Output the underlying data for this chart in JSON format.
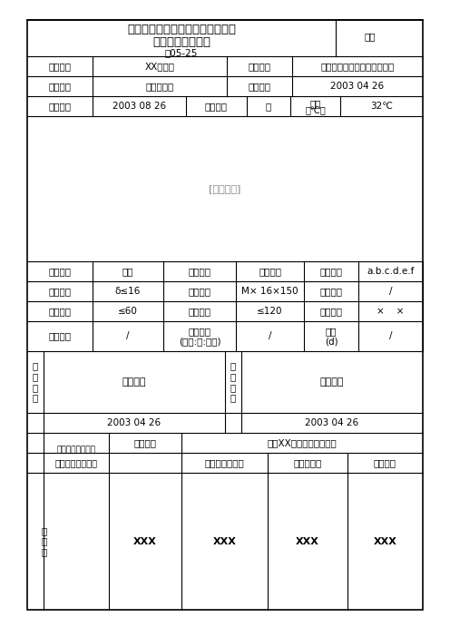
{
  "title_line1": "电梯导轨、层门的支架、螺栓埋设",
  "title_line2": "隐蔽工程检查记录",
  "title_line3": "表05-25",
  "biaohao_label": "编号",
  "row1": [
    "工程名称",
    "XX干休所",
    "隐检项目",
    "导轨、层门的支架、螺栓埋设"
  ],
  "row2": [
    "检查部位",
    "电梯井道内",
    "填写日期",
    "2003 04 26"
  ],
  "row3_label": "施工日期",
  "row3_val": "2003 08 26",
  "row3_weather_label": "天气情况",
  "row3_weather_val": "晴",
  "row3_temp_label": "气温\n（℃）",
  "row3_temp_val": "32℃",
  "spec_rows": [
    [
      "井壁结构",
      "现浇",
      "适用工艺",
      "膨胀螺栓",
      "适应图号",
      "a.b.c.d.e.f"
    ],
    [
      "埋铁厚度",
      "δ≤16",
      "螺栓规格",
      "M× 16×150",
      "型钢规格",
      "/"
    ],
    [
      "燕尾夹角",
      "≤60",
      "埋设深度",
      "≤120",
      "墙洞尺寸",
      "×    ×"
    ],
    [
      "清渣冲水",
      "/",
      "砼配合比\n(水泥:砂:豆石)",
      "/",
      "养护\n(d)",
      "/"
    ]
  ],
  "check_opinion_label": "检\n查\n意\n见",
  "check_opinion_val": "同意隐蔽",
  "recheck_label": "复\n查\n意\n见",
  "recheck_val": "复查合格",
  "date1": "2003 04 26",
  "date2": "2003 04 26",
  "jianli_label": "建设（监理）单位",
  "anzhuang_label": "安装单位",
  "anzhuang_val": "河北XX电梯设备安装公司",
  "role1": "专业技术负责人",
  "role2": "专业质检员",
  "role3": "专业工长",
  "sign_label": "签\n字\n栏",
  "signs": [
    "XXX",
    "XXX",
    "XXX",
    "XXX"
  ],
  "bg_color": "#ffffff",
  "border_color": "#000000",
  "text_color": "#000000"
}
